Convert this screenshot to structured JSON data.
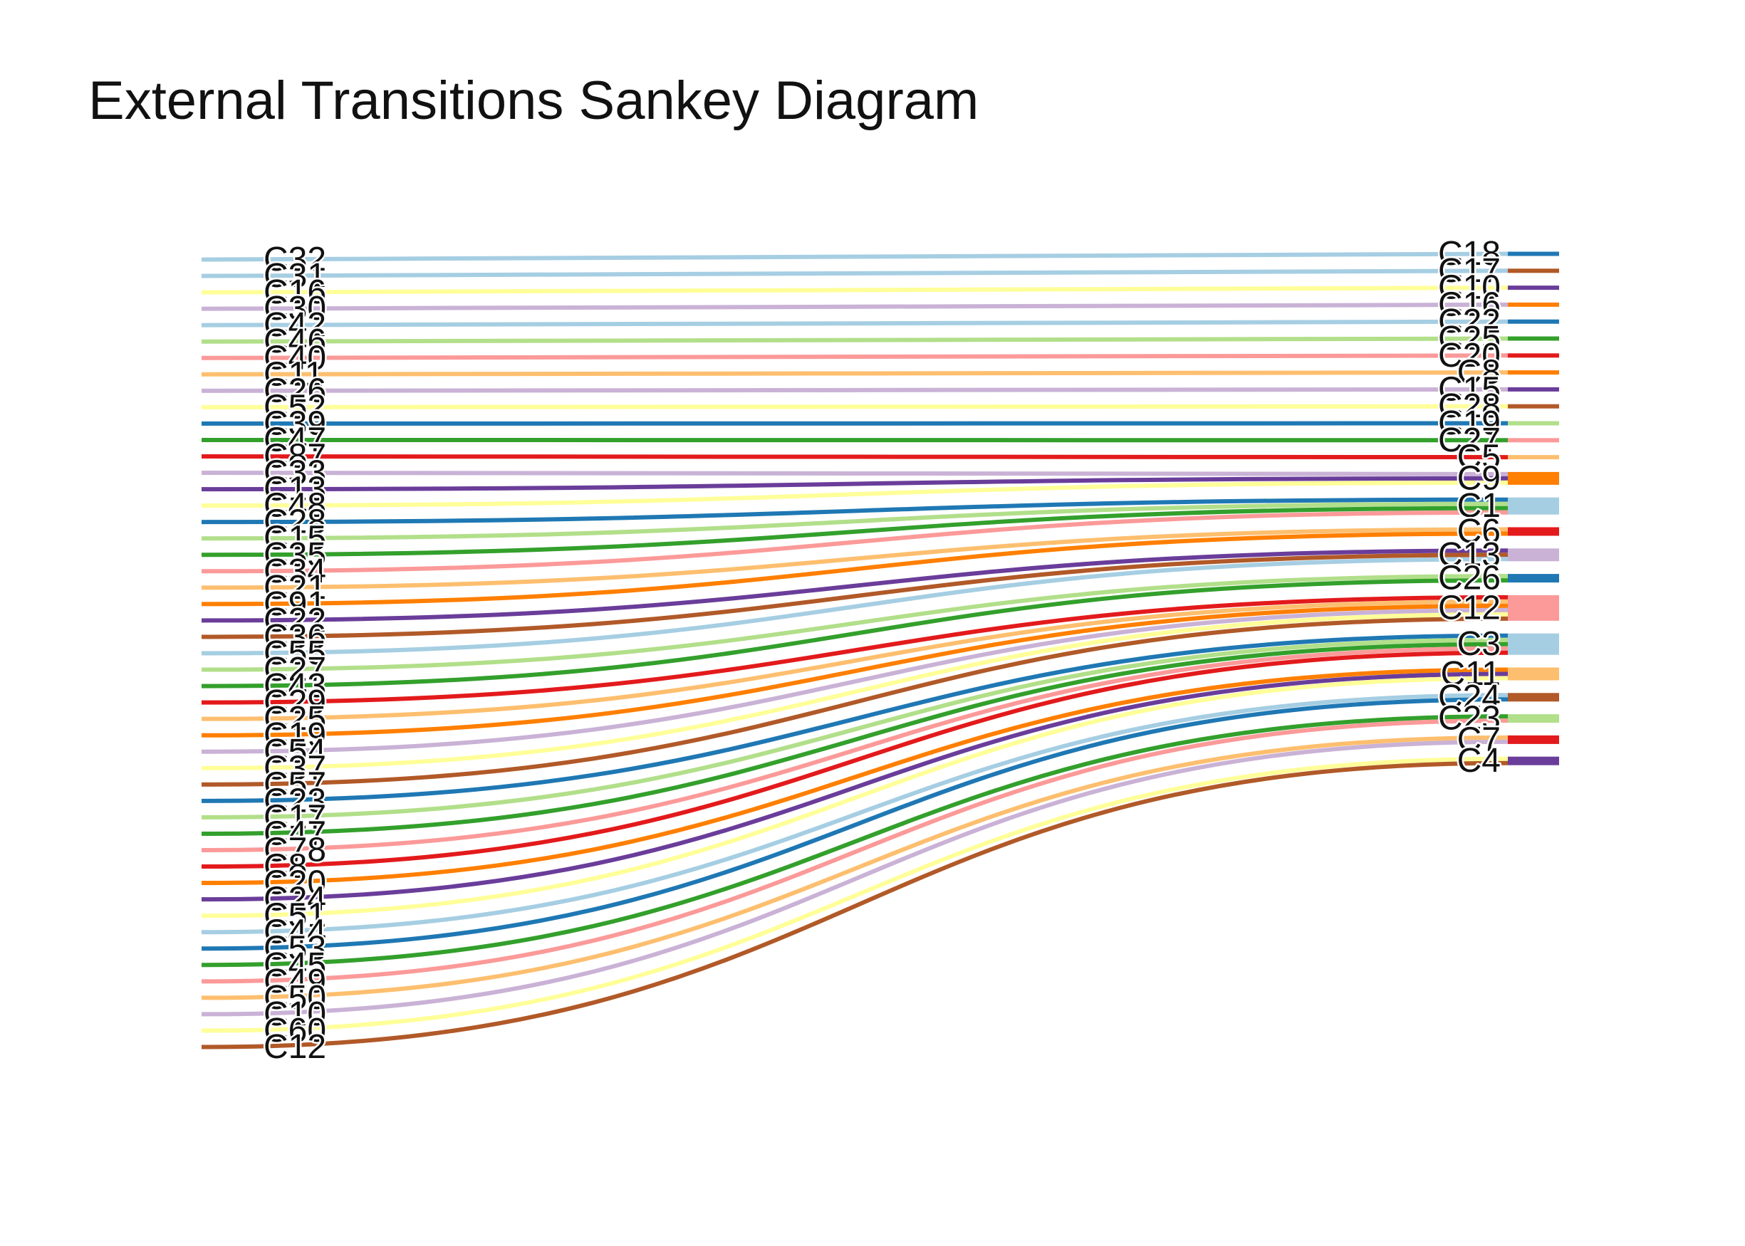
{
  "title": "External Transitions Sankey Diagram",
  "chart_data": {
    "type": "sankey",
    "title": "External Transitions Sankey Diagram",
    "left_nodes": [
      {
        "label": "C32",
        "color": "#a6cee3"
      },
      {
        "label": "C31",
        "color": "#a6cee3"
      },
      {
        "label": "C16",
        "color": "#ffff99"
      },
      {
        "label": "C30",
        "color": "#cab2d6"
      },
      {
        "label": "C42",
        "color": "#a6cee3"
      },
      {
        "label": "C46",
        "color": "#b2df8a"
      },
      {
        "label": "C40",
        "color": "#fb9a99"
      },
      {
        "label": "C11",
        "color": "#fdbf6f"
      },
      {
        "label": "C26",
        "color": "#cab2d6"
      },
      {
        "label": "C52",
        "color": "#ffff99"
      },
      {
        "label": "C39",
        "color": "#1f78b4"
      },
      {
        "label": "C47",
        "color": "#33a02c"
      },
      {
        "label": "C87",
        "color": "#e31a1c"
      },
      {
        "label": "C33",
        "color": "#cab2d6"
      },
      {
        "label": "C13",
        "color": "#6a3d9a"
      },
      {
        "label": "C48",
        "color": "#ffff99"
      },
      {
        "label": "C28",
        "color": "#1f78b4"
      },
      {
        "label": "C15",
        "color": "#b2df8a"
      },
      {
        "label": "C35",
        "color": "#33a02c"
      },
      {
        "label": "C34",
        "color": "#fb9a99"
      },
      {
        "label": "C21",
        "color": "#fdbf6f"
      },
      {
        "label": "C91",
        "color": "#ff7f00"
      },
      {
        "label": "C22",
        "color": "#6a3d9a"
      },
      {
        "label": "C36",
        "color": "#b15928"
      },
      {
        "label": "C55",
        "color": "#a6cee3"
      },
      {
        "label": "C27",
        "color": "#b2df8a"
      },
      {
        "label": "C43",
        "color": "#33a02c"
      },
      {
        "label": "C29",
        "color": "#e31a1c"
      },
      {
        "label": "C25",
        "color": "#fdbf6f"
      },
      {
        "label": "C19",
        "color": "#ff7f00"
      },
      {
        "label": "C54",
        "color": "#cab2d6"
      },
      {
        "label": "C37",
        "color": "#ffff99"
      },
      {
        "label": "C57",
        "color": "#b15928"
      },
      {
        "label": "C23",
        "color": "#1f78b4"
      },
      {
        "label": "C17",
        "color": "#b2df8a"
      },
      {
        "label": "C47",
        "color": "#33a02c"
      },
      {
        "label": "C78",
        "color": "#fb9a99"
      },
      {
        "label": "C8",
        "color": "#e31a1c"
      },
      {
        "label": "C20",
        "color": "#ff7f00"
      },
      {
        "label": "C24",
        "color": "#6a3d9a"
      },
      {
        "label": "C51",
        "color": "#ffff99"
      },
      {
        "label": "C44",
        "color": "#a6cee3"
      },
      {
        "label": "C53",
        "color": "#1f78b4"
      },
      {
        "label": "C45",
        "color": "#33a02c"
      },
      {
        "label": "C49",
        "color": "#fb9a99"
      },
      {
        "label": "C50",
        "color": "#fdbf6f"
      },
      {
        "label": "C10",
        "color": "#cab2d6"
      },
      {
        "label": "C60",
        "color": "#ffff99"
      },
      {
        "label": "C12",
        "color": "#b15928"
      }
    ],
    "right_nodes": [
      {
        "label": "C18",
        "color": "#1f78b4"
      },
      {
        "label": "C17",
        "color": "#b15928"
      },
      {
        "label": "C10",
        "color": "#6a3d9a"
      },
      {
        "label": "C16",
        "color": "#ff7f00"
      },
      {
        "label": "C22",
        "color": "#1f78b4"
      },
      {
        "label": "C25",
        "color": "#33a02c"
      },
      {
        "label": "C20",
        "color": "#e31a1c"
      },
      {
        "label": "C8",
        "color": "#ff7f00"
      },
      {
        "label": "C15",
        "color": "#6a3d9a"
      },
      {
        "label": "C28",
        "color": "#b15928"
      },
      {
        "label": "C19",
        "color": "#b2df8a"
      },
      {
        "label": "C27",
        "color": "#fb9a99"
      },
      {
        "label": "C5",
        "color": "#fdbf6f"
      },
      {
        "label": "C9",
        "color": "#ff7f00"
      },
      {
        "label": "C1",
        "color": "#a6cee3"
      },
      {
        "label": "C6",
        "color": "#e31a1c"
      },
      {
        "label": "C13",
        "color": "#cab2d6"
      },
      {
        "label": "C26",
        "color": "#1f78b4"
      },
      {
        "label": "C12",
        "color": "#fb9a99"
      },
      {
        "label": "C3",
        "color": "#a6cee3"
      },
      {
        "label": "C11",
        "color": "#fdbf6f"
      },
      {
        "label": "C24",
        "color": "#b15928"
      },
      {
        "label": "C23",
        "color": "#b2df8a"
      },
      {
        "label": "C7",
        "color": "#e31a1c"
      },
      {
        "label": "C4",
        "color": "#6a3d9a"
      }
    ],
    "links": [
      {
        "source": 0,
        "target": 0,
        "value": 1
      },
      {
        "source": 1,
        "target": 1,
        "value": 1
      },
      {
        "source": 2,
        "target": 2,
        "value": 1
      },
      {
        "source": 3,
        "target": 3,
        "value": 1
      },
      {
        "source": 4,
        "target": 4,
        "value": 1
      },
      {
        "source": 5,
        "target": 5,
        "value": 1
      },
      {
        "source": 6,
        "target": 6,
        "value": 1
      },
      {
        "source": 7,
        "target": 7,
        "value": 1
      },
      {
        "source": 8,
        "target": 8,
        "value": 1
      },
      {
        "source": 9,
        "target": 9,
        "value": 1
      },
      {
        "source": 10,
        "target": 10,
        "value": 1
      },
      {
        "source": 11,
        "target": 11,
        "value": 1
      },
      {
        "source": 12,
        "target": 12,
        "value": 1
      },
      {
        "source": 13,
        "target": 13,
        "value": 1
      },
      {
        "source": 14,
        "target": 13,
        "value": 1
      },
      {
        "source": 15,
        "target": 13,
        "value": 1
      },
      {
        "source": 16,
        "target": 14,
        "value": 1
      },
      {
        "source": 17,
        "target": 14,
        "value": 1
      },
      {
        "source": 18,
        "target": 14,
        "value": 1
      },
      {
        "source": 19,
        "target": 14,
        "value": 1
      },
      {
        "source": 20,
        "target": 15,
        "value": 1
      },
      {
        "source": 21,
        "target": 15,
        "value": 1
      },
      {
        "source": 22,
        "target": 16,
        "value": 1
      },
      {
        "source": 23,
        "target": 16,
        "value": 1
      },
      {
        "source": 24,
        "target": 16,
        "value": 1
      },
      {
        "source": 25,
        "target": 17,
        "value": 1
      },
      {
        "source": 26,
        "target": 17,
        "value": 1
      },
      {
        "source": 27,
        "target": 18,
        "value": 1
      },
      {
        "source": 28,
        "target": 18,
        "value": 1
      },
      {
        "source": 29,
        "target": 18,
        "value": 1
      },
      {
        "source": 30,
        "target": 18,
        "value": 1
      },
      {
        "source": 31,
        "target": 18,
        "value": 1
      },
      {
        "source": 32,
        "target": 18,
        "value": 1
      },
      {
        "source": 33,
        "target": 19,
        "value": 1
      },
      {
        "source": 34,
        "target": 19,
        "value": 1
      },
      {
        "source": 35,
        "target": 19,
        "value": 1
      },
      {
        "source": 36,
        "target": 19,
        "value": 1
      },
      {
        "source": 37,
        "target": 19,
        "value": 1
      },
      {
        "source": 38,
        "target": 20,
        "value": 1
      },
      {
        "source": 39,
        "target": 20,
        "value": 1
      },
      {
        "source": 40,
        "target": 20,
        "value": 1
      },
      {
        "source": 41,
        "target": 21,
        "value": 1
      },
      {
        "source": 42,
        "target": 21,
        "value": 1
      },
      {
        "source": 43,
        "target": 22,
        "value": 1
      },
      {
        "source": 44,
        "target": 22,
        "value": 1
      },
      {
        "source": 45,
        "target": 23,
        "value": 1
      },
      {
        "source": 46,
        "target": 23,
        "value": 1
      },
      {
        "source": 47,
        "target": 24,
        "value": 1
      },
      {
        "source": 48,
        "target": 24,
        "value": 1
      }
    ]
  }
}
